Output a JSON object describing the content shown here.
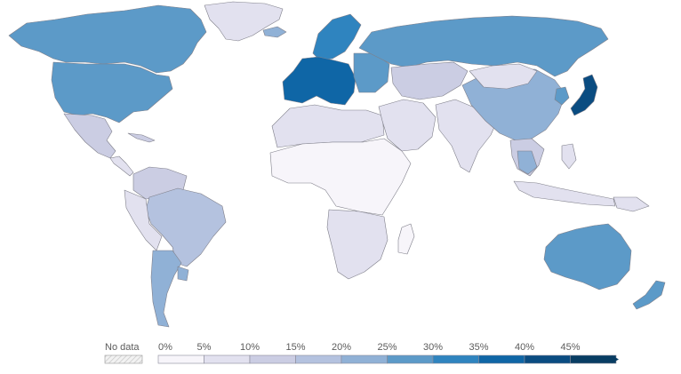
{
  "legend": {
    "no_data_label": "No data",
    "ticks": [
      "0%",
      "5%",
      "10%",
      "15%",
      "20%",
      "25%",
      "30%",
      "35%",
      "40%",
      "45%"
    ],
    "bin_colors": [
      "#f7f5fa",
      "#e2e1ef",
      "#cbcde3",
      "#b4c2df",
      "#90b1d6",
      "#5c9ac8",
      "#2f84bf",
      "#0f66a6",
      "#0a4c81",
      "#083d63"
    ],
    "no_data_pattern": "hatched-grey",
    "arrow": "right-arrow"
  },
  "map": {
    "projection": "world-robinson-like",
    "share_scale_max_pct": 45,
    "regions": [
      {
        "name": "Greenland",
        "value_pct": 8
      },
      {
        "name": "Canada",
        "value_pct": 25
      },
      {
        "name": "United States",
        "value_pct": 26
      },
      {
        "name": "Mexico",
        "value_pct": 10
      },
      {
        "name": "Central America",
        "value_pct": 7
      },
      {
        "name": "Caribbean",
        "value_pct": 12
      },
      {
        "name": "Colombia/Venezuela",
        "value_pct": 10
      },
      {
        "name": "Brazil",
        "value_pct": 18
      },
      {
        "name": "Peru/Bolivia",
        "value_pct": 9
      },
      {
        "name": "Argentina/Chile",
        "value_pct": 20
      },
      {
        "name": "Uruguay",
        "value_pct": 24
      },
      {
        "name": "Iceland",
        "value_pct": 22
      },
      {
        "name": "Scandinavia",
        "value_pct": 30
      },
      {
        "name": "Western Europe",
        "value_pct": 36
      },
      {
        "name": "Eastern Europe",
        "value_pct": 28
      },
      {
        "name": "Russia",
        "value_pct": 26
      },
      {
        "name": "North Africa",
        "value_pct": 8
      },
      {
        "name": "Sub-Saharan Africa",
        "value_pct": 4
      },
      {
        "name": "Southern Africa",
        "value_pct": 8
      },
      {
        "name": "Madagascar",
        "value_pct": 4
      },
      {
        "name": "Middle East",
        "value_pct": 5
      },
      {
        "name": "Central Asia",
        "value_pct": 10
      },
      {
        "name": "South Asia",
        "value_pct": 9
      },
      {
        "name": "China",
        "value_pct": 22
      },
      {
        "name": "Mongolia",
        "value_pct": 6
      },
      {
        "name": "Korea",
        "value_pct": 28
      },
      {
        "name": "Japan",
        "value_pct": 42
      },
      {
        "name": "Southeast Asia",
        "value_pct": 14
      },
      {
        "name": "Thailand",
        "value_pct": 22
      },
      {
        "name": "Indonesia",
        "value_pct": 9
      },
      {
        "name": "Philippines",
        "value_pct": 9
      },
      {
        "name": "Papua New Guinea",
        "value_pct": 5
      },
      {
        "name": "Australia",
        "value_pct": 26
      },
      {
        "name": "New Zealand",
        "value_pct": 27
      }
    ]
  }
}
